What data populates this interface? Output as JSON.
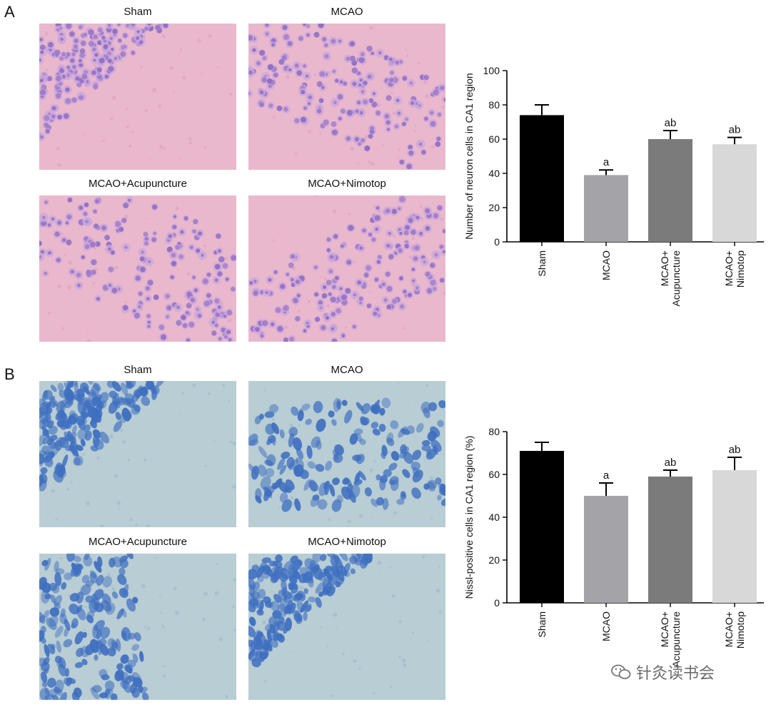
{
  "figure": {
    "panels": [
      {
        "letter": "A",
        "stain": "he",
        "images": [
          {
            "label": "Sham"
          },
          {
            "label": "MCAO"
          },
          {
            "label": "MCAO+Acupuncture"
          },
          {
            "label": "MCAO+Nimotop"
          }
        ]
      },
      {
        "letter": "B",
        "stain": "nissl",
        "images": [
          {
            "label": "Sham"
          },
          {
            "label": "MCAO"
          },
          {
            "label": "MCAO+Acupuncture"
          },
          {
            "label": "MCAO+Nimotop"
          }
        ]
      }
    ],
    "watermark": "针灸读书会"
  },
  "colors": {
    "sham": "#000000",
    "mcao": "#a4a4a8",
    "acupuncture": "#7b7b7b",
    "nimotop": "#d8d8d8",
    "he_background": "#eab8cc",
    "he_nucleus": "#8e6cc2",
    "nissl_background": "#b8cdd4",
    "nissl_cell": "#3f6fc0"
  },
  "chart_data": [
    {
      "type": "bar",
      "panel": "A",
      "ylabel": "Number of neuron cells in CA1 region",
      "categories": [
        "Sham",
        "MCAO",
        "MCAO+\nAcupuncture",
        "MCAO+\nNimotop"
      ],
      "values": [
        74,
        39,
        60,
        57
      ],
      "errors": [
        6,
        3,
        5,
        4
      ],
      "annotations": [
        "",
        "a",
        "ab",
        "ab"
      ],
      "ylim": [
        0,
        100
      ],
      "yticks": [
        0,
        20,
        40,
        60,
        80,
        100
      ],
      "colors": [
        "#000000",
        "#a4a4a8",
        "#7b7b7b",
        "#d8d8d8"
      ],
      "grid": false
    },
    {
      "type": "bar",
      "panel": "B",
      "ylabel": "Nissl-positive cells in CA1 region (%)",
      "categories": [
        "Sham",
        "MCAO",
        "MCAO+\nAcupuncture",
        "MCAO+\nNimotop"
      ],
      "values": [
        71,
        50,
        59,
        62
      ],
      "errors": [
        4,
        6,
        3,
        6
      ],
      "annotations": [
        "",
        "a",
        "ab",
        "ab"
      ],
      "ylim": [
        0,
        80
      ],
      "yticks": [
        0,
        20,
        40,
        60,
        80
      ],
      "colors": [
        "#000000",
        "#a4a4a8",
        "#7b7b7b",
        "#d8d8d8"
      ],
      "grid": false
    }
  ]
}
